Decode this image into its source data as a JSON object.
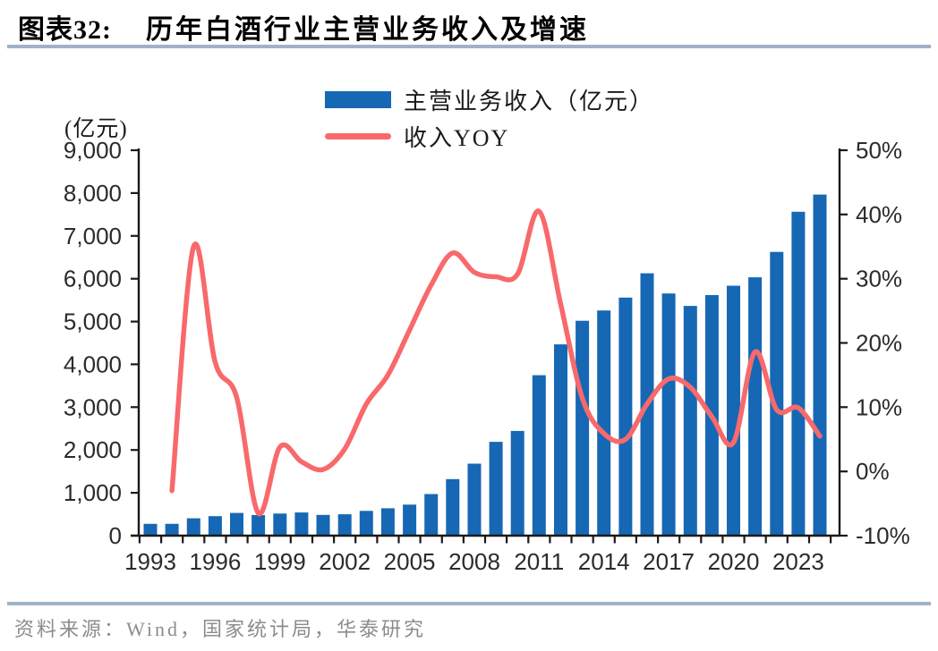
{
  "figure": {
    "label": "图表32:",
    "title": "历年白酒行业主营业务收入及增速",
    "source": "资料来源：Wind，国家统计局，华泰研究"
  },
  "colors": {
    "bar_blue": "#1668B4",
    "line_red": "#F8696B",
    "divider_blue_gray": "#A0B2C8",
    "axis_black": "#1a1a1a",
    "tick_label": "#2b2b2b",
    "source_gray": "#8C8C8C"
  },
  "chart_data": {
    "type": "bar+line combo",
    "title": "历年白酒行业主营业务收入及增速",
    "x": [
      1993,
      1994,
      1995,
      1996,
      1997,
      1998,
      1999,
      2000,
      2001,
      2002,
      2003,
      2004,
      2005,
      2006,
      2007,
      2008,
      2009,
      2010,
      2011,
      2012,
      2013,
      2014,
      2015,
      2016,
      2017,
      2018,
      2019,
      2020,
      2021,
      2022,
      2023,
      2024
    ],
    "series": [
      {
        "name": "主营业务收入（亿元）",
        "type": "bar",
        "axis": "left",
        "color": "#1668B4",
        "values": [
          275,
          275,
          405,
          455,
          530,
          480,
          515,
          540,
          485,
          500,
          578,
          640,
          725,
          970,
          1320,
          1680,
          2190,
          2445,
          3747,
          4466,
          5018,
          5259,
          5559,
          6126,
          5654,
          5364,
          5618,
          5836,
          6033,
          6626,
          7563,
          7964
        ]
      },
      {
        "name": "收入YOY",
        "type": "line",
        "axis": "right",
        "color": "#F8696B",
        "values": [
          null,
          -3,
          35,
          17,
          11.5,
          -6.5,
          3.8,
          1.5,
          0.3,
          3.5,
          10.5,
          15,
          22,
          29,
          34,
          31,
          30.3,
          30.7,
          40.5,
          26,
          11.4,
          5.9,
          5,
          10.5,
          14.4,
          13.1,
          8.5,
          4.5,
          18.6,
          9.6,
          9.9,
          5.5
        ]
      }
    ],
    "left_axis": {
      "title": "(亿元)",
      "min": 0,
      "max": 9000,
      "step": 1000,
      "tick_labels": [
        "0",
        "1,000",
        "2,000",
        "3,000",
        "4,000",
        "5,000",
        "6,000",
        "7,000",
        "8,000",
        "9,000"
      ]
    },
    "right_axis": {
      "min": -10,
      "max": 50,
      "step": 10,
      "suffix": "%",
      "tick_labels": [
        "-10%",
        "0%",
        "10%",
        "20%",
        "30%",
        "40%",
        "50%"
      ]
    },
    "x_axis": {
      "label_every": 3,
      "shown_labels": [
        "1993",
        "1996",
        "1999",
        "2002",
        "2005",
        "2008",
        "2011",
        "2014",
        "2017",
        "2020",
        "2023"
      ]
    },
    "grid": false,
    "legend_position": "top-center"
  }
}
